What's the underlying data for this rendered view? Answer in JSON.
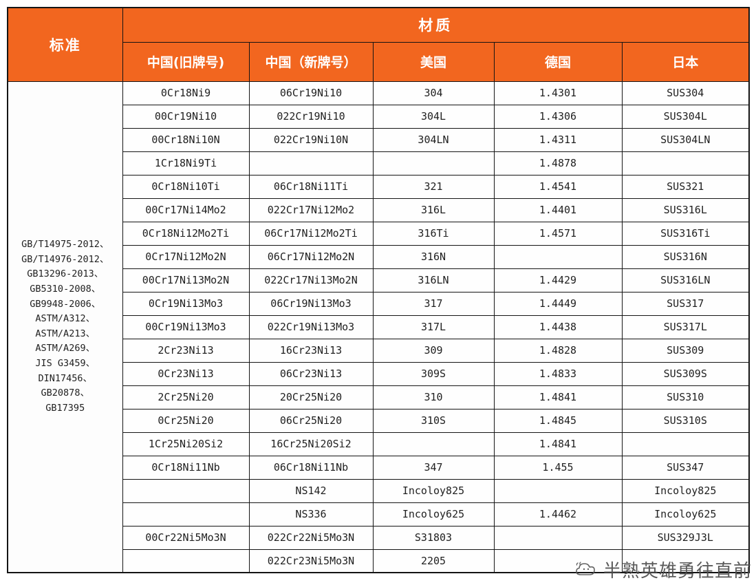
{
  "chart_data": {
    "type": "table",
    "title": "材质",
    "row_header": "标准",
    "columns": [
      "中国(旧牌号)",
      "中国（新牌号）",
      "美国",
      "德国",
      "日本"
    ],
    "standards": [
      "GB/T14975-2012、",
      "GB/T14976-2012、",
      "GB13296-2013、",
      "GB5310-2008、",
      "GB9948-2006、",
      "ASTM/A312、",
      "ASTM/A213、",
      "ASTM/A269、",
      "JIS G3459、",
      "DIN17456、",
      "GB20878、",
      "GB17395"
    ],
    "rows": [
      [
        "0Cr18Ni9",
        "06Cr19Ni10",
        "304",
        "1.4301",
        "SUS304"
      ],
      [
        "00Cr19Ni10",
        "022Cr19Ni10",
        "304L",
        "1.4306",
        "SUS304L"
      ],
      [
        "00Cr18Ni10N",
        "022Cr19Ni10N",
        "304LN",
        "1.4311",
        "SUS304LN"
      ],
      [
        "1Cr18Ni9Ti",
        "",
        "",
        "1.4878",
        ""
      ],
      [
        "0Cr18Ni10Ti",
        "06Cr18Ni11Ti",
        "321",
        "1.4541",
        "SUS321"
      ],
      [
        "00Cr17Ni14Mo2",
        "022Cr17Ni12Mo2",
        "316L",
        "1.4401",
        "SUS316L"
      ],
      [
        "0Cr18Ni12Mo2Ti",
        "06Cr17Ni12Mo2Ti",
        "316Ti",
        "1.4571",
        "SUS316Ti"
      ],
      [
        "0Cr17Ni12Mo2N",
        "06Cr17Ni12Mo2N",
        "316N",
        "",
        "SUS316N"
      ],
      [
        "00Cr17Ni13Mo2N",
        "022Cr17Ni13Mo2N",
        "316LN",
        "1.4429",
        "SUS316LN"
      ],
      [
        "0Cr19Ni13Mo3",
        "06Cr19Ni13Mo3",
        "317",
        "1.4449",
        "SUS317"
      ],
      [
        "00Cr19Ni13Mo3",
        "022Cr19Ni13Mo3",
        "317L",
        "1.4438",
        "SUS317L"
      ],
      [
        "2Cr23Ni13",
        "16Cr23Ni13",
        "309",
        "1.4828",
        "SUS309"
      ],
      [
        "0Cr23Ni13",
        "06Cr23Ni13",
        "309S",
        "1.4833",
        "SUS309S"
      ],
      [
        "2Cr25Ni20",
        "20Cr25Ni20",
        "310",
        "1.4841",
        "SUS310"
      ],
      [
        "0Cr25Ni20",
        "06Cr25Ni20",
        "310S",
        "1.4845",
        "SUS310S"
      ],
      [
        "1Cr25Ni20Si2",
        "16Cr25Ni20Si2",
        "",
        "1.4841",
        ""
      ],
      [
        "0Cr18Ni11Nb",
        "06Cr18Ni11Nb",
        "347",
        "1.455",
        "SUS347"
      ],
      [
        "",
        "NS142",
        "Incoloy825",
        "",
        "Incoloy825"
      ],
      [
        "",
        "NS336",
        "Incoloy625",
        "1.4462",
        "Incoloy625"
      ],
      [
        "00Cr22Ni5Mo3N",
        "022Cr22Ni5Mo3N",
        "S31803",
        "",
        "SUS329J3L"
      ],
      [
        "",
        "022Cr23Ni5Mo3N",
        "2205",
        "",
        ""
      ]
    ]
  },
  "watermark": {
    "text": "半熟英雄勇往直前"
  },
  "colors": {
    "header_bg": "#f2661f",
    "border": "#141414",
    "watermark_text": "#4d4d4d"
  }
}
